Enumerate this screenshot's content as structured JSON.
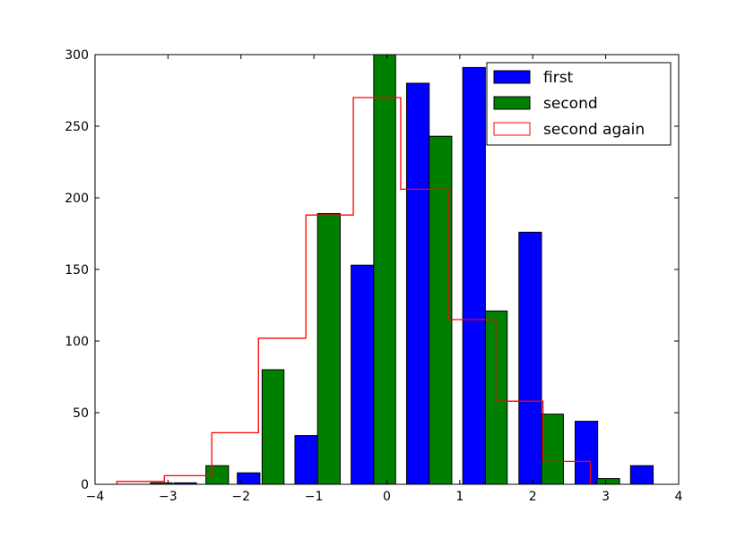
{
  "chart_data": {
    "type": "bar",
    "xlim": [
      -4,
      4
    ],
    "ylim": [
      0,
      300
    ],
    "xticks": [
      -4,
      -3,
      -2,
      -1,
      0,
      1,
      2,
      3,
      4
    ],
    "yticks": [
      0,
      50,
      100,
      150,
      200,
      250,
      300
    ],
    "xtick_labels": [
      "−4",
      "−3",
      "−2",
      "−1",
      "0",
      "1",
      "2",
      "3",
      "4"
    ],
    "ytick_labels": [
      "0",
      "50",
      "100",
      "150",
      "200",
      "250",
      "300"
    ],
    "grid": false,
    "legend_position": "top-right",
    "series": [
      {
        "name": "first",
        "kind": "bar",
        "color": "#0000ff",
        "bins": [
          {
            "x0": -2.92,
            "x1": -2.61,
            "value": 1
          },
          {
            "x0": -2.05,
            "x1": -1.74,
            "value": 8
          },
          {
            "x0": -1.26,
            "x1": -0.95,
            "value": 34
          },
          {
            "x0": -0.49,
            "x1": -0.18,
            "value": 153
          },
          {
            "x0": 0.27,
            "x1": 0.58,
            "value": 280
          },
          {
            "x0": 1.04,
            "x1": 1.35,
            "value": 291
          },
          {
            "x0": 1.81,
            "x1": 2.12,
            "value": 176
          },
          {
            "x0": 2.58,
            "x1": 2.89,
            "value": 44
          },
          {
            "x0": 3.34,
            "x1": 3.65,
            "value": 13
          }
        ]
      },
      {
        "name": "second",
        "kind": "bar",
        "color": "#008000",
        "bins": [
          {
            "x0": -3.24,
            "x1": -2.94,
            "value": 1
          },
          {
            "x0": -2.48,
            "x1": -2.17,
            "value": 13
          },
          {
            "x0": -1.71,
            "x1": -1.41,
            "value": 80
          },
          {
            "x0": -0.95,
            "x1": -0.64,
            "value": 189
          },
          {
            "x0": -0.18,
            "x1": 0.12,
            "value": 300
          },
          {
            "x0": 0.58,
            "x1": 0.89,
            "value": 243
          },
          {
            "x0": 1.35,
            "x1": 1.65,
            "value": 121
          },
          {
            "x0": 2.12,
            "x1": 2.42,
            "value": 49
          },
          {
            "x0": 2.88,
            "x1": 3.19,
            "value": 4
          }
        ]
      },
      {
        "name": "second again",
        "kind": "step",
        "color": "#ff0000",
        "edges": [
          -3.7,
          -3.05,
          -2.4,
          -1.76,
          -1.11,
          -0.46,
          0.19,
          0.84,
          1.49,
          2.14,
          2.79
        ],
        "values": [
          2,
          6,
          36,
          102,
          188,
          270,
          206,
          115,
          58,
          16
        ]
      }
    ]
  }
}
